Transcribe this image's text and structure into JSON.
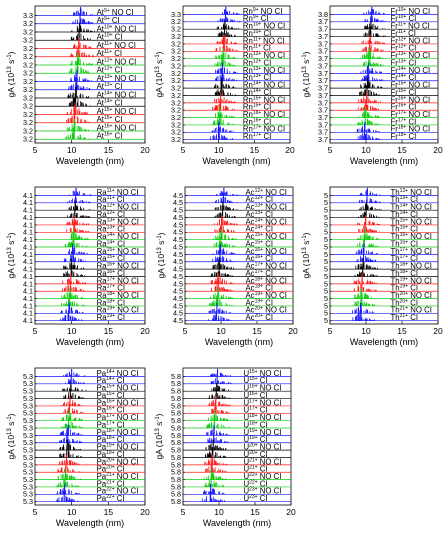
{
  "chart_data": [
    {
      "type": "line",
      "xlabel": "Wavelength (nm)",
      "ylabel": "gA (10",
      "ylabel_exp": "13",
      "ylabel_unit": "s",
      "ylabel_unit_exp": "-1",
      "ylabel_close": ")",
      "xlim": [
        5,
        20
      ],
      "xticks": [
        "5",
        "10",
        "15",
        "20"
      ],
      "ytick_value": "3.2",
      "ytick_top": "3.3",
      "spectrum_center_nm": 11.2,
      "ions": [
        {
          "element": "At",
          "charge": "9+",
          "label": "NO CI"
        },
        {
          "element": "At",
          "charge": "9+",
          "label": "CI"
        },
        {
          "element": "At",
          "charge": "10+",
          "label": "NO CI"
        },
        {
          "element": "At",
          "charge": "10+",
          "label": "CI"
        },
        {
          "element": "At",
          "charge": "11+",
          "label": "NO CI"
        },
        {
          "element": "At",
          "charge": "11+",
          "label": "CI"
        },
        {
          "element": "At",
          "charge": "12+",
          "label": "NO CI"
        },
        {
          "element": "At",
          "charge": "12+",
          "label": "CI"
        },
        {
          "element": "At",
          "charge": "13+",
          "label": "NO CI"
        },
        {
          "element": "At",
          "charge": "13+",
          "label": "CI"
        },
        {
          "element": "At",
          "charge": "14+",
          "label": "NO CI"
        },
        {
          "element": "At",
          "charge": "14+",
          "label": "CI"
        },
        {
          "element": "At",
          "charge": "15+",
          "label": "NO CI"
        },
        {
          "element": "At",
          "charge": "15+",
          "label": "CI"
        },
        {
          "element": "At",
          "charge": "16+",
          "label": "NO CI"
        },
        {
          "element": "At",
          "charge": "16+",
          "label": "CI"
        }
      ]
    },
    {
      "type": "line",
      "xlabel": "Wavelength (nm)",
      "ylabel": "gA (10",
      "ylabel_exp": "13",
      "ylabel_unit": "s",
      "ylabel_unit_exp": "-1",
      "ylabel_close": ")",
      "xlim": [
        5,
        20
      ],
      "xticks": [
        "5",
        "10",
        "15",
        "20"
      ],
      "ytick_value": "3.2",
      "ytick_top": "3.3",
      "spectrum_center_nm": 11.0,
      "ions": [
        {
          "element": "Rn",
          "charge": "9+",
          "label": "NO CI"
        },
        {
          "element": "Rn",
          "charge": "9+",
          "label": "CI"
        },
        {
          "element": "Rn",
          "charge": "10+",
          "label": "NO CI"
        },
        {
          "element": "Rn",
          "charge": "10+",
          "label": "CI"
        },
        {
          "element": "Rn",
          "charge": "11+",
          "label": "NO CI"
        },
        {
          "element": "Rn",
          "charge": "11+",
          "label": "CI"
        },
        {
          "element": "Rn",
          "charge": "12+",
          "label": "NO CI"
        },
        {
          "element": "Rn",
          "charge": "12+",
          "label": "CI"
        },
        {
          "element": "Rn",
          "charge": "13+",
          "label": "NO CI"
        },
        {
          "element": "Rn",
          "charge": "13+",
          "label": "CI"
        },
        {
          "element": "Rn",
          "charge": "14+",
          "label": "NO CI"
        },
        {
          "element": "Rn",
          "charge": "14+",
          "label": "CI"
        },
        {
          "element": "Rn",
          "charge": "15+",
          "label": "NO CI"
        },
        {
          "element": "Rn",
          "charge": "15+",
          "label": "CI"
        },
        {
          "element": "Rn",
          "charge": "16+",
          "label": "NO CI"
        },
        {
          "element": "Rn",
          "charge": "16+",
          "label": "CI"
        },
        {
          "element": "Rn",
          "charge": "17+",
          "label": "NO CI"
        },
        {
          "element": "Rn",
          "charge": "17+",
          "label": "CI"
        }
      ]
    },
    {
      "type": "line",
      "xlabel": "Wavelength (nm)",
      "ylabel": "gA (10",
      "ylabel_exp": "13",
      "ylabel_unit": "s",
      "ylabel_unit_exp": "-1",
      "ylabel_close": ")",
      "xlim": [
        5,
        20
      ],
      "xticks": [
        "5",
        "10",
        "15",
        "20"
      ],
      "ytick_value": "3.7",
      "ytick_top": "3.8",
      "spectrum_center_nm": 10.8,
      "ions": [
        {
          "element": "Fr",
          "charge": "10+",
          "label": "NO CI"
        },
        {
          "element": "Fr",
          "charge": "10+",
          "label": "CI"
        },
        {
          "element": "Fr",
          "charge": "11+",
          "label": "NO CI"
        },
        {
          "element": "Fr",
          "charge": "11+",
          "label": "CI"
        },
        {
          "element": "Fr",
          "charge": "12+",
          "label": "NO CI"
        },
        {
          "element": "Fr",
          "charge": "12+",
          "label": "CI"
        },
        {
          "element": "Fr",
          "charge": "13+",
          "label": "NO CI"
        },
        {
          "element": "Fr",
          "charge": "13+",
          "label": "CI"
        },
        {
          "element": "Fr",
          "charge": "14+",
          "label": "NO CI"
        },
        {
          "element": "Fr",
          "charge": "14+",
          "label": "CI"
        },
        {
          "element": "Fr",
          "charge": "15+",
          "label": "NO CI"
        },
        {
          "element": "Fr",
          "charge": "15+",
          "label": "CI"
        },
        {
          "element": "Fr",
          "charge": "16+",
          "label": "NO CI"
        },
        {
          "element": "Fr",
          "charge": "16+",
          "label": "CI"
        },
        {
          "element": "Fr",
          "charge": "17+",
          "label": "NO CI"
        },
        {
          "element": "Fr",
          "charge": "17+",
          "label": "CI"
        },
        {
          "element": "Fr",
          "charge": "18+",
          "label": "NO CI"
        },
        {
          "element": "Fr",
          "charge": "18+",
          "label": "CI"
        }
      ]
    },
    {
      "type": "line",
      "xlabel": "Wavelength (nm)",
      "ylabel": "gA (10",
      "ylabel_exp": "13",
      "ylabel_unit": "s",
      "ylabel_unit_exp": "-1",
      "ylabel_close": ")",
      "xlim": [
        5,
        20
      ],
      "xticks": [
        "5",
        "10",
        "15",
        "20"
      ],
      "ytick_value": "4.1",
      "ytick_top": "4.1",
      "spectrum_center_nm": 10.6,
      "ions": [
        {
          "element": "Ra",
          "charge": "11+",
          "label": "NO CI"
        },
        {
          "element": "Ra",
          "charge": "11+",
          "label": "CI"
        },
        {
          "element": "Ra",
          "charge": "12+",
          "label": "NO CI"
        },
        {
          "element": "Ra",
          "charge": "12+",
          "label": "CI"
        },
        {
          "element": "Ra",
          "charge": "13+",
          "label": "NO CI"
        },
        {
          "element": "Ra",
          "charge": "13+",
          "label": "CI"
        },
        {
          "element": "Ra",
          "charge": "14+",
          "label": "NO CI"
        },
        {
          "element": "Ra",
          "charge": "14+",
          "label": "CI"
        },
        {
          "element": "Ra",
          "charge": "15+",
          "label": "NO CI"
        },
        {
          "element": "Ra",
          "charge": "15+",
          "label": "CI"
        },
        {
          "element": "Ra",
          "charge": "16+",
          "label": "NO CI"
        },
        {
          "element": "Ra",
          "charge": "16+",
          "label": "CI"
        },
        {
          "element": "Ra",
          "charge": "17+",
          "label": "NO CI"
        },
        {
          "element": "Ra",
          "charge": "17+",
          "label": "CI"
        },
        {
          "element": "Ra",
          "charge": "18+",
          "label": "NO CI"
        },
        {
          "element": "Ra",
          "charge": "18+",
          "label": "CI"
        },
        {
          "element": "Ra",
          "charge": "19+",
          "label": "NO CI"
        },
        {
          "element": "Ra",
          "charge": "19+",
          "label": "CI"
        }
      ]
    },
    {
      "type": "line",
      "xlabel": "Wavelength (nm)",
      "ylabel": "gA (10",
      "ylabel_exp": "13",
      "ylabel_unit": "s",
      "ylabel_unit_exp": "-1",
      "ylabel_close": ")",
      "xlim": [
        5,
        20
      ],
      "xticks": [
        "5",
        "10",
        "15",
        "20"
      ],
      "ytick_value": "4.5",
      "ytick_top": "4.5",
      "spectrum_center_nm": 10.4,
      "ions": [
        {
          "element": "Ac",
          "charge": "12+",
          "label": "NO CI"
        },
        {
          "element": "Ac",
          "charge": "12+",
          "label": "CI"
        },
        {
          "element": "Ac",
          "charge": "13+",
          "label": "NO CI"
        },
        {
          "element": "Ac",
          "charge": "13+",
          "label": "CI"
        },
        {
          "element": "Ac",
          "charge": "14+",
          "label": "NO CI"
        },
        {
          "element": "Ac",
          "charge": "14+",
          "label": "CI"
        },
        {
          "element": "Ac",
          "charge": "15+",
          "label": "NO CI"
        },
        {
          "element": "Ac",
          "charge": "15+",
          "label": "CI"
        },
        {
          "element": "Ac",
          "charge": "16+",
          "label": "NO CI"
        },
        {
          "element": "Ac",
          "charge": "16+",
          "label": "CI"
        },
        {
          "element": "Ac",
          "charge": "17+",
          "label": "NO CI"
        },
        {
          "element": "Ac",
          "charge": "17+",
          "label": "CI"
        },
        {
          "element": "Ac",
          "charge": "18+",
          "label": "NO CI"
        },
        {
          "element": "Ac",
          "charge": "18+",
          "label": "CI"
        },
        {
          "element": "Ac",
          "charge": "19+",
          "label": "NO CI"
        },
        {
          "element": "Ac",
          "charge": "19+",
          "label": "CI"
        },
        {
          "element": "Ac",
          "charge": "20+",
          "label": "NO CI"
        },
        {
          "element": "Ac",
          "charge": "20+",
          "label": "CI"
        }
      ]
    },
    {
      "type": "line",
      "xlabel": "Wavelength (nm)",
      "ylabel": "gA (10",
      "ylabel_exp": "13",
      "ylabel_unit": "s",
      "ylabel_unit_exp": "-1",
      "ylabel_close": ")",
      "xlim": [
        5,
        20
      ],
      "xticks": [
        "5",
        "10",
        "15",
        "20"
      ],
      "ytick_value": "5",
      "ytick_top": "5",
      "spectrum_center_nm": 10.2,
      "ions": [
        {
          "element": "Th",
          "charge": "13+",
          "label": "NO CI"
        },
        {
          "element": "Th",
          "charge": "13+",
          "label": "CI"
        },
        {
          "element": "Th",
          "charge": "14+",
          "label": "NO CI"
        },
        {
          "element": "Th",
          "charge": "14+",
          "label": "CI"
        },
        {
          "element": "Th",
          "charge": "15+",
          "label": "NO CI"
        },
        {
          "element": "Th",
          "charge": "15+",
          "label": "CI"
        },
        {
          "element": "Th",
          "charge": "16+",
          "label": "NO CI"
        },
        {
          "element": "Th",
          "charge": "16+",
          "label": "CI"
        },
        {
          "element": "Th",
          "charge": "17+",
          "label": "NO CI"
        },
        {
          "element": "Th",
          "charge": "17+",
          "label": "CI"
        },
        {
          "element": "Th",
          "charge": "18+",
          "label": "NO CI"
        },
        {
          "element": "Th",
          "charge": "18+",
          "label": "CI"
        },
        {
          "element": "Th",
          "charge": "19+",
          "label": "NO CI"
        },
        {
          "element": "Th",
          "charge": "19+",
          "label": "CI"
        },
        {
          "element": "Th",
          "charge": "20+",
          "label": "NO CI"
        },
        {
          "element": "Th",
          "charge": "20+",
          "label": "CI"
        },
        {
          "element": "Th",
          "charge": "21+",
          "label": "NO CI"
        },
        {
          "element": "Th",
          "charge": "21+",
          "label": "CI"
        }
      ]
    },
    {
      "type": "line",
      "xlabel": "Wavelength (nm)",
      "ylabel": "gA (10",
      "ylabel_exp": "13",
      "ylabel_unit": "s",
      "ylabel_unit_exp": "-1",
      "ylabel_close": ")",
      "xlim": [
        5,
        20
      ],
      "xticks": [
        "5",
        "10",
        "15",
        "20"
      ],
      "ytick_value": "5.3",
      "ytick_top": "5.3",
      "spectrum_center_nm": 10.0,
      "ions": [
        {
          "element": "Pa",
          "charge": "14+",
          "label": "NO CI"
        },
        {
          "element": "Pa",
          "charge": "14+",
          "label": "CI"
        },
        {
          "element": "Pa",
          "charge": "15+",
          "label": "NO CI"
        },
        {
          "element": "Pa",
          "charge": "15+",
          "label": "CI"
        },
        {
          "element": "Pa",
          "charge": "16+",
          "label": "NO CI"
        },
        {
          "element": "Pa",
          "charge": "16+",
          "label": "CI"
        },
        {
          "element": "Pa",
          "charge": "17+",
          "label": "NO CI"
        },
        {
          "element": "Pa",
          "charge": "17+",
          "label": "CI"
        },
        {
          "element": "Pa",
          "charge": "18+",
          "label": "NO CI"
        },
        {
          "element": "Pa",
          "charge": "18+",
          "label": "CI"
        },
        {
          "element": "Pa",
          "charge": "19+",
          "label": "NO CI"
        },
        {
          "element": "Pa",
          "charge": "19+",
          "label": "CI"
        },
        {
          "element": "Pa",
          "charge": "20+",
          "label": "NO CI"
        },
        {
          "element": "Pa",
          "charge": "20+",
          "label": "CI"
        },
        {
          "element": "Pa",
          "charge": "21+",
          "label": "NO CI"
        },
        {
          "element": "Pa",
          "charge": "21+",
          "label": "CI"
        },
        {
          "element": "Pa",
          "charge": "22+",
          "label": "NO CI"
        },
        {
          "element": "Pa",
          "charge": "22+",
          "label": "CI"
        }
      ]
    },
    {
      "type": "line",
      "xlabel": "Wavelength (nm)",
      "ylabel": "gA (10",
      "ylabel_exp": "13",
      "ylabel_unit": "s",
      "ylabel_unit_exp": "-1",
      "ylabel_close": ")",
      "xlim": [
        5,
        20
      ],
      "xticks": [
        "5",
        "10",
        "15",
        "20"
      ],
      "ytick_value": "5.8",
      "ytick_top": "5.8",
      "spectrum_center_nm": 9.8,
      "ions": [
        {
          "element": "U",
          "charge": "15+",
          "label": "NO CI"
        },
        {
          "element": "U",
          "charge": "15+",
          "label": "CI"
        },
        {
          "element": "U",
          "charge": "16+",
          "label": "NO CI"
        },
        {
          "element": "U",
          "charge": "16+",
          "label": "CI"
        },
        {
          "element": "U",
          "charge": "17+",
          "label": "NO CI"
        },
        {
          "element": "U",
          "charge": "17+",
          "label": "CI"
        },
        {
          "element": "U",
          "charge": "18+",
          "label": "NO CI"
        },
        {
          "element": "U",
          "charge": "18+",
          "label": "CI"
        },
        {
          "element": "U",
          "charge": "19+",
          "label": "NO CI"
        },
        {
          "element": "U",
          "charge": "19+",
          "label": "CI"
        },
        {
          "element": "U",
          "charge": "20+",
          "label": "NO CI"
        },
        {
          "element": "U",
          "charge": "20+",
          "label": "CI"
        },
        {
          "element": "U",
          "charge": "21+",
          "label": "NO CI"
        },
        {
          "element": "U",
          "charge": "21+",
          "label": "CI"
        },
        {
          "element": "U",
          "charge": "22+",
          "label": "NO CI"
        },
        {
          "element": "U",
          "charge": "22+",
          "label": "CI"
        },
        {
          "element": "U",
          "charge": "23+",
          "label": "NO CI"
        },
        {
          "element": "U",
          "charge": "23+",
          "label": "CI"
        }
      ]
    }
  ],
  "colors": {
    "cycle": [
      "#1a1aff",
      "#1a1aff",
      "#000000",
      "#000000",
      "#ff1a1a",
      "#ff1a1a",
      "#11cc11",
      "#11cc11"
    ],
    "axis": "#000000"
  }
}
